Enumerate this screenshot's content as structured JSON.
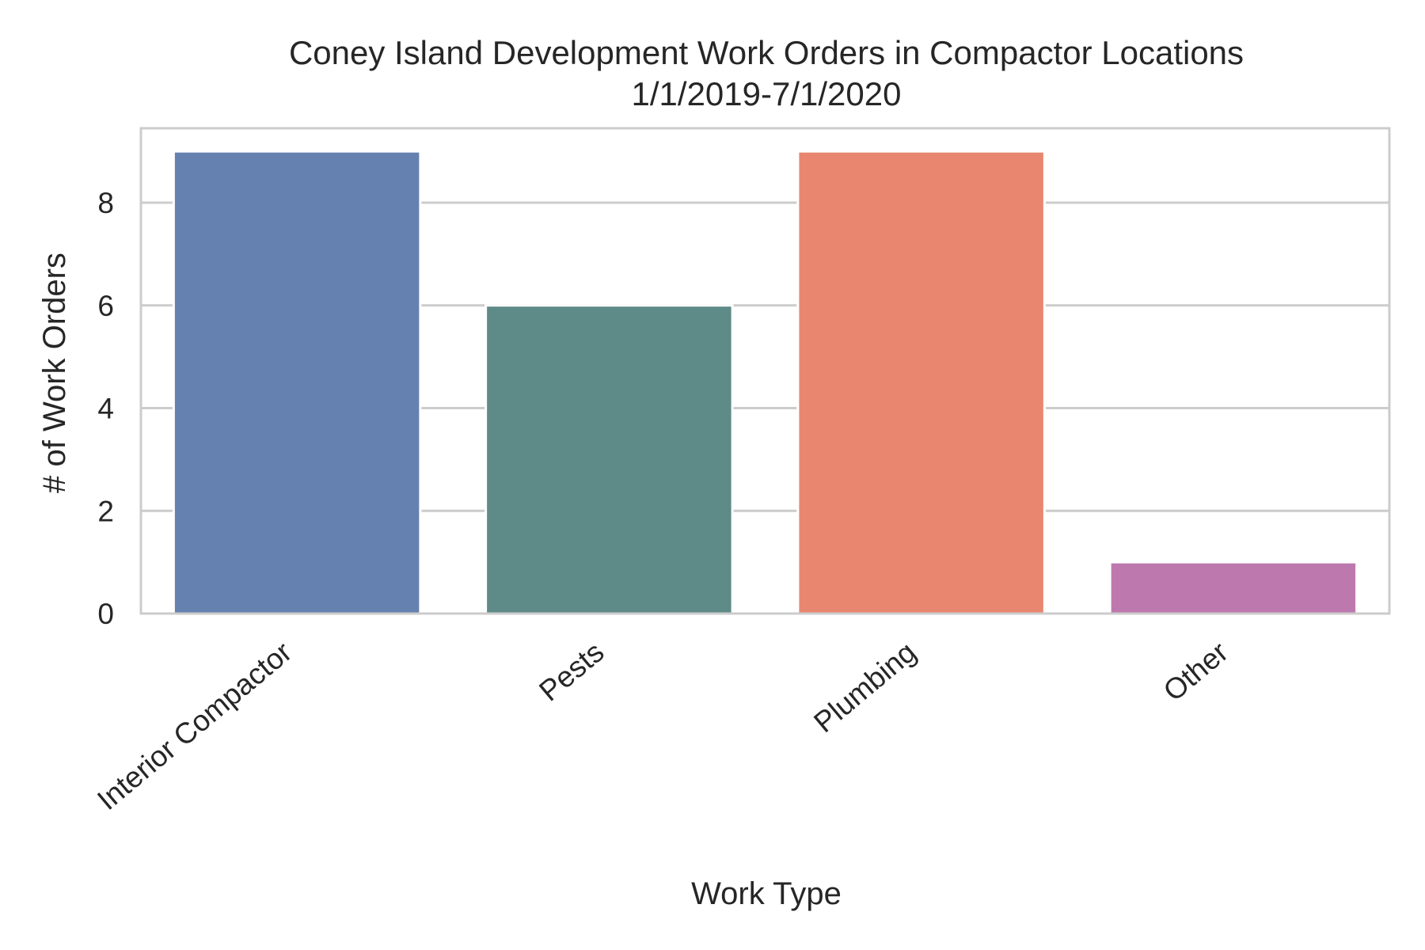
{
  "chart_data": {
    "type": "bar",
    "title": "Coney Island Development Work Orders in Compactor Locations",
    "subtitle": "1/1/2019-7/1/2020",
    "xlabel": "Work Type",
    "ylabel": "# of Work Orders",
    "categories": [
      "Interior Compactor",
      "Pests",
      "Plumbing",
      "Other"
    ],
    "values": [
      9,
      6,
      9,
      1
    ],
    "colors": [
      "#6581b0",
      "#5e8a87",
      "#e9866f",
      "#bd79ae"
    ],
    "ylim": [
      0,
      9.45
    ],
    "yticks": [
      0,
      2,
      4,
      6,
      8
    ],
    "ytick_labels": [
      "0",
      "2",
      "4",
      "6",
      "8"
    ],
    "grid": true,
    "legend": "none"
  }
}
